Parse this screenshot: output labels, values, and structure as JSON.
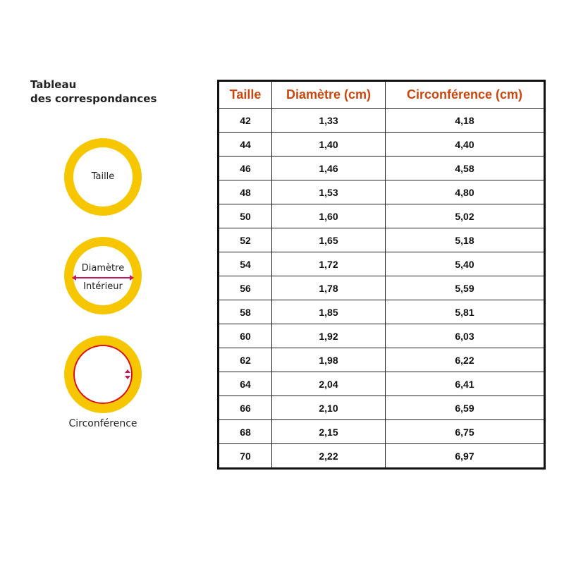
{
  "title": {
    "line1": "Tableau",
    "line2": "des correspondances"
  },
  "diagrams": {
    "taille": "Taille",
    "diametre_line1": "Diamètre",
    "diametre_line2": "Intérieur",
    "circonference": "Circonférence"
  },
  "colors": {
    "ring": "#f6c700",
    "header_text": "#c9460e",
    "arrow": "#c2185b",
    "circumference_line": "#e01010"
  },
  "table": {
    "headers": [
      "Taille",
      "Diamètre (cm)",
      "Circonférence (cm)"
    ],
    "rows": [
      [
        "42",
        "1,33",
        "4,18"
      ],
      [
        "44",
        "1,40",
        "4,40"
      ],
      [
        "46",
        "1,46",
        "4,58"
      ],
      [
        "48",
        "1,53",
        "4,80"
      ],
      [
        "50",
        "1,60",
        "5,02"
      ],
      [
        "52",
        "1,65",
        "5,18"
      ],
      [
        "54",
        "1,72",
        "5,40"
      ],
      [
        "56",
        "1,78",
        "5,59"
      ],
      [
        "58",
        "1,85",
        "5,81"
      ],
      [
        "60",
        "1,92",
        "6,03"
      ],
      [
        "62",
        "1,98",
        "6,22"
      ],
      [
        "64",
        "2,04",
        "6,41"
      ],
      [
        "66",
        "2,10",
        "6,59"
      ],
      [
        "68",
        "2,15",
        "6,75"
      ],
      [
        "70",
        "2,22",
        "6,97"
      ]
    ]
  }
}
